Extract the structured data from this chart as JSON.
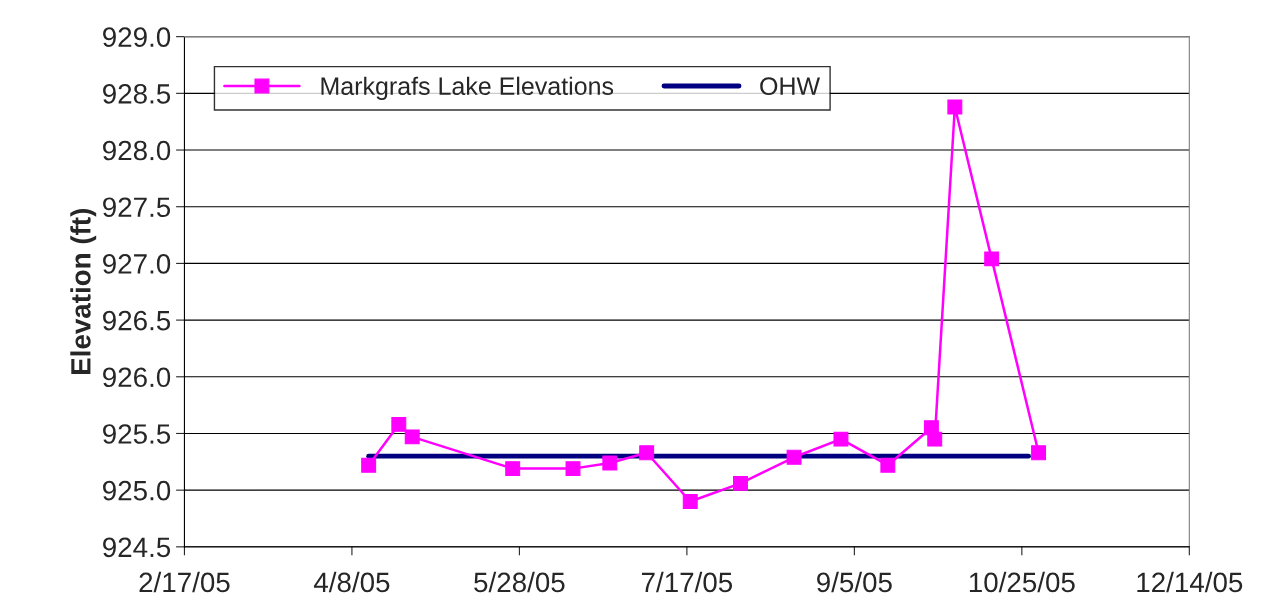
{
  "chart_data": {
    "type": "line",
    "ylabel": "Elevation (ft)",
    "series": [
      {
        "name": "Markgrafs Lake Elevations",
        "color": "#ff00ff",
        "marker": "square",
        "x": [
          "2005-04-13",
          "2005-04-22",
          "2005-04-26",
          "2005-05-26",
          "2005-06-13",
          "2005-06-24",
          "2005-07-05",
          "2005-07-18",
          "2005-08-02",
          "2005-08-18",
          "2005-09-01",
          "2005-09-15",
          "2005-09-28",
          "2005-09-29",
          "2005-10-05",
          "2005-10-16",
          "2005-10-30"
        ],
        "values": [
          925.22,
          925.58,
          925.47,
          925.19,
          925.19,
          925.24,
          925.33,
          924.9,
          925.06,
          925.29,
          925.45,
          925.22,
          925.55,
          925.45,
          928.38,
          927.04,
          925.33
        ]
      },
      {
        "name": "OHW",
        "color": "#000080",
        "marker": "none",
        "x": [
          "2005-04-13",
          "2005-10-27"
        ],
        "values": [
          925.3,
          925.3
        ]
      }
    ],
    "xlim": [
      "2005-02-17",
      "2005-12-14"
    ],
    "xticks": [
      {
        "value": "2005-02-17",
        "label": "2/17/05"
      },
      {
        "value": "2005-04-08",
        "label": "4/8/05"
      },
      {
        "value": "2005-05-28",
        "label": "5/28/05"
      },
      {
        "value": "2005-07-17",
        "label": "7/17/05"
      },
      {
        "value": "2005-09-05",
        "label": "9/5/05"
      },
      {
        "value": "2005-10-25",
        "label": "10/25/05"
      },
      {
        "value": "2005-12-14",
        "label": "12/14/05"
      }
    ],
    "ylim": [
      924.5,
      929.0
    ],
    "yticks": [
      {
        "value": 924.5,
        "label": "924.5"
      },
      {
        "value": 925,
        "label": "925.0"
      },
      {
        "value": 925.5,
        "label": "925.5"
      },
      {
        "value": 926,
        "label": "926.0"
      },
      {
        "value": 926.5,
        "label": "926.5"
      },
      {
        "value": 927,
        "label": "927.0"
      },
      {
        "value": 927.5,
        "label": "927.5"
      },
      {
        "value": 928,
        "label": "928.0"
      },
      {
        "value": 928.5,
        "label": "928.5"
      },
      {
        "value": 929,
        "label": "929.0"
      }
    ],
    "grid": "y",
    "legend": "top left",
    "line_style": "solid"
  }
}
